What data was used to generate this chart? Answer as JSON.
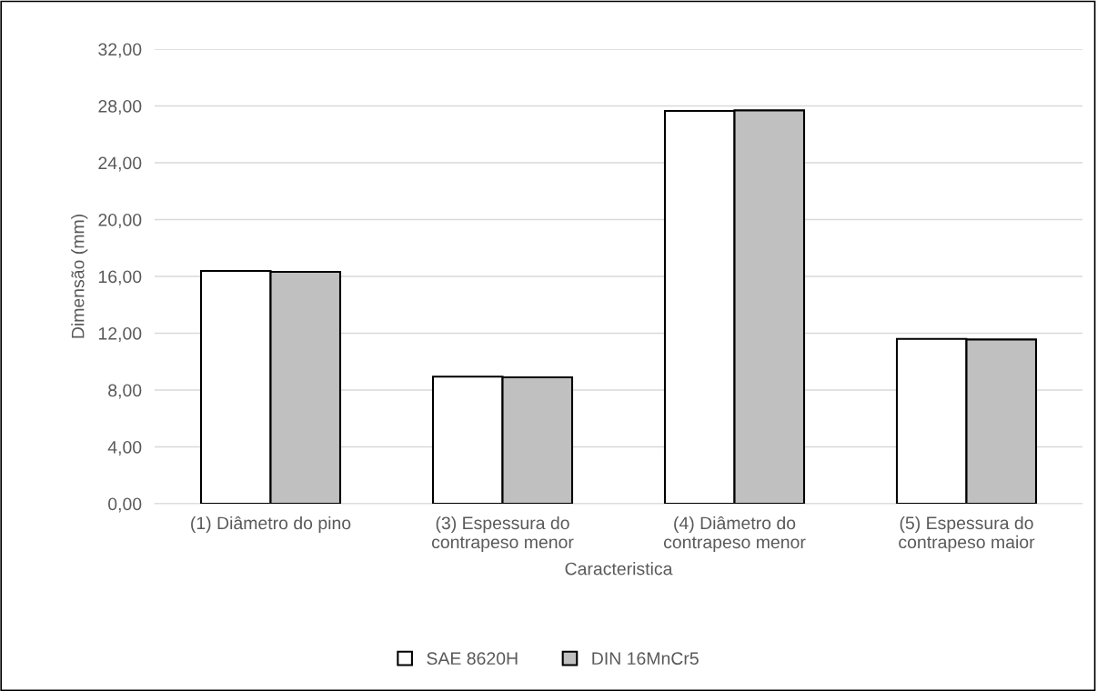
{
  "chart_data": {
    "type": "bar",
    "xlabel": "Caracteristica",
    "ylabel": "Dimensão (mm)",
    "categories": [
      "(1) Diâmetro do pino",
      "(3) Espessura do\ncontrapeso menor",
      "(4) Diâmetro do\ncontrapeso menor",
      "(5) Espessura do\ncontrapeso maior"
    ],
    "series": [
      {
        "name": "SAE 8620H",
        "color": "#ffffff",
        "values": [
          16.38,
          8.94,
          27.65,
          11.6
        ]
      },
      {
        "name": "DIN 16MnCr5",
        "color": "#c0c0c0",
        "values": [
          16.32,
          8.9,
          27.69,
          11.56
        ]
      }
    ],
    "ylim": [
      0,
      32
    ],
    "yticks": [
      {
        "value": 0,
        "label": "0,00"
      },
      {
        "value": 4,
        "label": "4,00"
      },
      {
        "value": 8,
        "label": "8,00"
      },
      {
        "value": 12,
        "label": "12,00"
      },
      {
        "value": 16,
        "label": "16,00"
      },
      {
        "value": 20,
        "label": "20,00"
      },
      {
        "value": 24,
        "label": "24,00"
      },
      {
        "value": 28,
        "label": "28,00"
      },
      {
        "value": 32,
        "label": "32,00"
      }
    ],
    "grid": "y",
    "legend": "bottom"
  }
}
